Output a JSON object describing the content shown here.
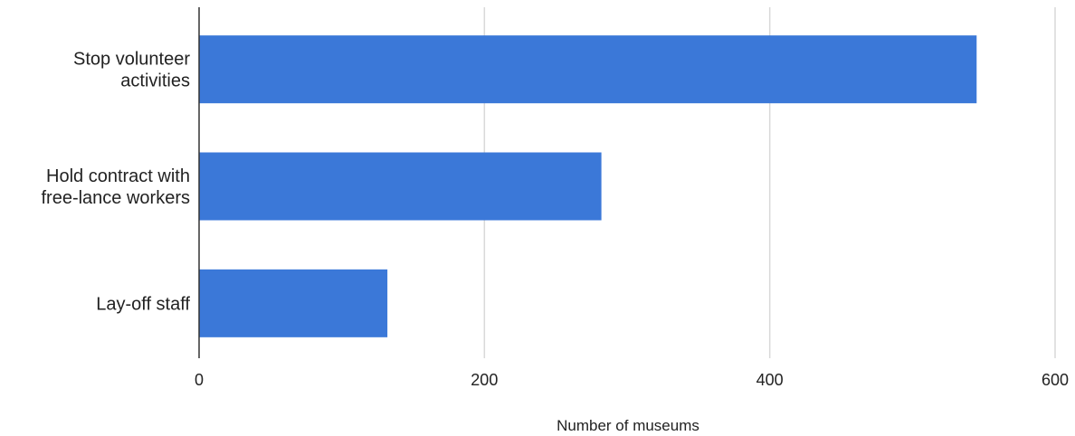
{
  "chart_data": {
    "type": "bar",
    "orientation": "horizontal",
    "categories": [
      [
        "Stop volunteer",
        "activities"
      ],
      [
        "Hold contract with",
        "free-lance workers"
      ],
      [
        "Lay-off staff"
      ]
    ],
    "values": [
      545,
      282,
      132
    ],
    "xlabel": "Number of museums",
    "ylabel": "",
    "xlim": [
      0,
      600
    ],
    "xticks": [
      0,
      200,
      400,
      600
    ],
    "grid": true,
    "legend": "none",
    "bar_color": "#3b78d8"
  }
}
